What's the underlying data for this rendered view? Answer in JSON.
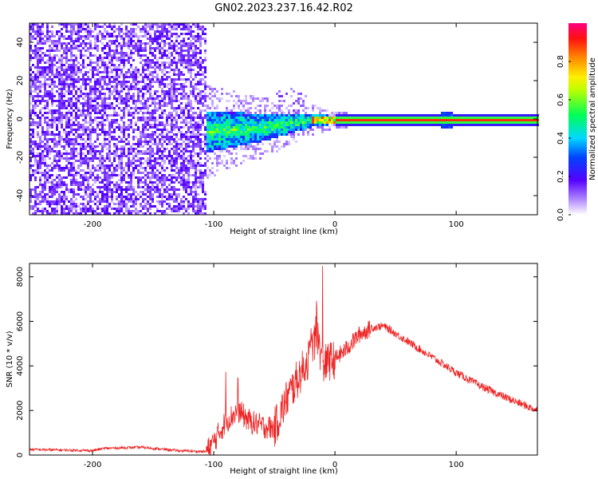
{
  "title": "GN02.2023.237.16.42.R02",
  "chart_data": [
    {
      "type": "heatmap",
      "xlabel": "Height of straight line (km)",
      "ylabel": "Frequency (Hz)",
      "xlim": [
        -252,
        167
      ],
      "ylim": [
        -50,
        50
      ],
      "xticks": [
        -200,
        -100,
        0,
        100
      ],
      "yticks": [
        -40,
        -20,
        0,
        20,
        40
      ],
      "colorbar": {
        "label": "Normalized spectral amplitude",
        "range": [
          0,
          1
        ],
        "ticks": [
          0.0,
          0.2,
          0.4,
          0.6,
          0.8
        ],
        "tick_labels": [
          "0.0",
          "0.2",
          "0.4",
          "0.6",
          "0.8"
        ],
        "colormap": [
          "#ffffff",
          "#8a2be2",
          "#3a00ff",
          "#00c8ff",
          "#00ff40",
          "#ffff00",
          "#ff0000",
          "#ff0080"
        ]
      },
      "features": {
        "noise_region_x": [
          -252,
          -106
        ],
        "noise_amplitude": 0.15,
        "signal_band_x": [
          -106,
          -10
        ],
        "signal_band_freq_at_x": [
          [
            -106,
            -6
          ],
          [
            -60,
            -4
          ],
          [
            -20,
            0
          ],
          [
            0,
            0
          ]
        ],
        "signal_band_amplitude": [
          0.3,
          0.55
        ],
        "carrier_line_x": [
          0,
          167
        ],
        "carrier_line_freq": 0,
        "carrier_line_amplitude": 0.9
      },
      "grid": false
    },
    {
      "type": "line",
      "xlabel": "Height of straight line (km)",
      "ylabel": "SNR (10 * v/v)",
      "xlim": [
        -252,
        167
      ],
      "ylim": [
        0,
        8600
      ],
      "xticks": [
        -200,
        -100,
        0,
        100
      ],
      "yticks": [
        0,
        2000,
        4000,
        6000,
        8000
      ],
      "color": "#ee2222",
      "series": [
        {
          "x": [
            -252,
            -200,
            -190,
            -160,
            -130,
            -106,
            -100,
            -90,
            -80,
            -70,
            -60,
            -50,
            -40,
            -30,
            -20,
            -15,
            -10,
            -5,
            0,
            10,
            20,
            30,
            40,
            60,
            80,
            100,
            120,
            140,
            167
          ],
          "y": [
            250,
            200,
            300,
            350,
            200,
            150,
            600,
            1500,
            2000,
            1500,
            1300,
            1200,
            2500,
            3500,
            4500,
            5500,
            4000,
            4200,
            4300,
            4800,
            5400,
            5700,
            5800,
            5100,
            4400,
            3700,
            3100,
            2600,
            2000
          ],
          "spikes": [
            [
              -90,
              3900
            ],
            [
              -80,
              3500
            ],
            [
              -20,
              6300
            ],
            [
              -15,
              7100
            ],
            [
              -10,
              8600
            ],
            [
              -5,
              6600
            ]
          ]
        }
      ],
      "grid": false
    }
  ]
}
